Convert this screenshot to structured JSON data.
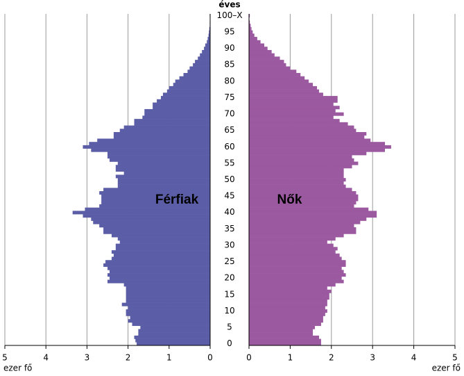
{
  "chart_data": {
    "type": "pyramid",
    "y_label": "éves",
    "xlabel": "ezer fő",
    "categories": [
      "0",
      null,
      null,
      null,
      null,
      "5",
      null,
      null,
      null,
      null,
      "10",
      null,
      null,
      null,
      null,
      "15",
      null,
      null,
      null,
      null,
      "20",
      null,
      null,
      null,
      null,
      "25",
      null,
      null,
      null,
      null,
      "30",
      null,
      null,
      null,
      null,
      "35",
      null,
      null,
      null,
      null,
      "40",
      null,
      null,
      null,
      null,
      "45",
      null,
      null,
      null,
      null,
      "50",
      null,
      null,
      null,
      null,
      "55",
      null,
      null,
      null,
      null,
      "60",
      null,
      null,
      null,
      null,
      "65",
      null,
      null,
      null,
      null,
      "70",
      null,
      null,
      null,
      null,
      "75",
      null,
      null,
      null,
      null,
      "80",
      null,
      null,
      null,
      null,
      "85",
      null,
      null,
      null,
      null,
      "90",
      null,
      null,
      null,
      null,
      "95",
      null,
      null,
      null,
      null,
      "100–X"
    ],
    "series": [
      {
        "name": "Férfiak",
        "color": "#5b5ea6",
        "side": "left",
        "values": [
          1.79,
          1.82,
          1.85,
          1.75,
          1.75,
          1.7,
          1.9,
          2.0,
          1.95,
          2.05,
          2.05,
          2.0,
          2.15,
          2.05,
          2.05,
          2.05,
          2.05,
          2.05,
          2.1,
          2.5,
          2.45,
          2.5,
          2.45,
          2.5,
          2.6,
          2.55,
          2.4,
          2.35,
          2.4,
          2.3,
          2.3,
          2.2,
          2.25,
          2.4,
          2.6,
          2.6,
          2.7,
          2.85,
          2.9,
          3.1,
          3.35,
          3.05,
          2.7,
          2.65,
          2.65,
          2.65,
          2.7,
          2.6,
          2.25,
          2.25,
          2.25,
          2.3,
          2.1,
          2.3,
          2.3,
          2.25,
          2.45,
          2.5,
          2.5,
          2.9,
          3.1,
          2.95,
          2.75,
          2.35,
          2.35,
          2.2,
          2.1,
          1.85,
          1.85,
          1.65,
          1.6,
          1.6,
          1.4,
          1.4,
          1.3,
          1.2,
          1.15,
          1.05,
          1.0,
          0.9,
          0.85,
          0.75,
          0.65,
          0.55,
          0.5,
          0.42,
          0.37,
          0.3,
          0.25,
          0.2,
          0.15,
          0.12,
          0.08,
          0.06,
          0.04,
          0.03,
          0.02,
          0.01,
          0.01,
          0.005,
          0.01
        ]
      },
      {
        "name": "Nők",
        "color": "#9b59a0",
        "side": "right",
        "values": [
          1.75,
          1.75,
          1.7,
          1.55,
          1.55,
          1.6,
          1.75,
          1.8,
          1.8,
          1.85,
          1.9,
          1.85,
          1.9,
          1.9,
          1.95,
          1.95,
          2.0,
          1.9,
          2.1,
          2.3,
          2.25,
          2.35,
          2.3,
          2.25,
          2.35,
          2.35,
          2.25,
          2.2,
          2.1,
          2.15,
          2.05,
          1.9,
          2.1,
          2.3,
          2.6,
          2.6,
          2.55,
          2.7,
          2.85,
          3.1,
          3.1,
          2.9,
          2.55,
          2.6,
          2.65,
          2.65,
          2.6,
          2.5,
          2.35,
          2.3,
          2.35,
          2.3,
          2.3,
          2.3,
          2.5,
          2.65,
          2.55,
          2.5,
          2.85,
          3.3,
          3.45,
          3.3,
          2.95,
          2.8,
          2.85,
          2.6,
          2.55,
          2.4,
          2.2,
          2.05,
          2.3,
          2.1,
          2.2,
          2.05,
          2.15,
          2.15,
          1.8,
          1.7,
          1.65,
          1.55,
          1.45,
          1.35,
          1.25,
          1.15,
          1.0,
          0.9,
          0.85,
          0.75,
          0.62,
          0.55,
          0.45,
          0.37,
          0.28,
          0.2,
          0.13,
          0.09,
          0.06,
          0.04,
          0.02,
          0.01,
          0.02
        ]
      }
    ],
    "xlim": [
      0,
      5
    ],
    "xticks": [
      0,
      1,
      2,
      3,
      4,
      5
    ],
    "grid": true
  }
}
